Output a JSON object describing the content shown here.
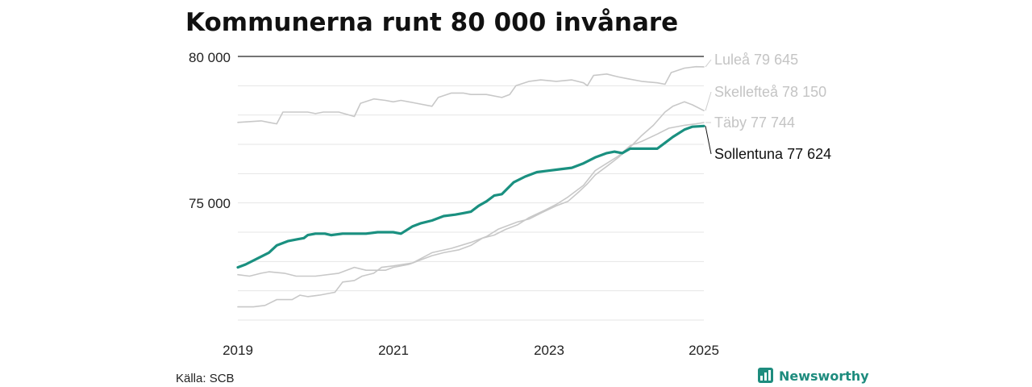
{
  "chart_data": {
    "type": "line",
    "title": "Kommunerna runt 80 000 invånare",
    "source": "Källa: SCB",
    "brand": "Newsworthy",
    "ylim": [
      71000,
      80000
    ],
    "xlim": [
      2019.0,
      2025.0
    ],
    "yticks": [
      {
        "value": 80000,
        "label": "80 000"
      },
      {
        "value": 75000,
        "label": "75 000"
      }
    ],
    "gridlines": [
      79000,
      78000,
      77000,
      76000,
      74000,
      73000,
      72000,
      71000
    ],
    "xticks": [
      {
        "value": 2019,
        "label": "2019"
      },
      {
        "value": 2021,
        "label": "2021"
      },
      {
        "value": 2023,
        "label": "2023"
      },
      {
        "value": 2025,
        "label": "2025"
      }
    ],
    "grid": true,
    "legend": "direct labels at line ends",
    "colors": {
      "highlight": "#1a9080",
      "context": "#c8c8c8",
      "context_label": "#c4c4c4",
      "highlight_label": "#111111"
    },
    "series": [
      {
        "name": "Luleå",
        "label": "Luleå 79 645",
        "highlight": false,
        "points": [
          [
            2019.0,
            77750
          ],
          [
            2019.3,
            77800
          ],
          [
            2019.4,
            77750
          ],
          [
            2019.5,
            77700
          ],
          [
            2019.58,
            78100
          ],
          [
            2019.75,
            78100
          ],
          [
            2019.9,
            78100
          ],
          [
            2020.0,
            78050
          ],
          [
            2020.1,
            78100
          ],
          [
            2020.3,
            78100
          ],
          [
            2020.5,
            77950
          ],
          [
            2020.58,
            78400
          ],
          [
            2020.75,
            78550
          ],
          [
            2020.9,
            78500
          ],
          [
            2021.0,
            78450
          ],
          [
            2021.1,
            78500
          ],
          [
            2021.3,
            78400
          ],
          [
            2021.5,
            78300
          ],
          [
            2021.58,
            78600
          ],
          [
            2021.75,
            78750
          ],
          [
            2021.9,
            78750
          ],
          [
            2022.0,
            78700
          ],
          [
            2022.2,
            78700
          ],
          [
            2022.4,
            78600
          ],
          [
            2022.5,
            78700
          ],
          [
            2022.58,
            79000
          ],
          [
            2022.75,
            79150
          ],
          [
            2022.9,
            79200
          ],
          [
            2023.1,
            79150
          ],
          [
            2023.3,
            79200
          ],
          [
            2023.45,
            79100
          ],
          [
            2023.5,
            79000
          ],
          [
            2023.58,
            79350
          ],
          [
            2023.75,
            79400
          ],
          [
            2023.9,
            79300
          ],
          [
            2024.0,
            79250
          ],
          [
            2024.2,
            79150
          ],
          [
            2024.4,
            79100
          ],
          [
            2024.5,
            79050
          ],
          [
            2024.58,
            79450
          ],
          [
            2024.75,
            79600
          ],
          [
            2024.9,
            79650
          ],
          [
            2025.0,
            79645
          ]
        ]
      },
      {
        "name": "Skellefteå",
        "label": "Skellefteå 78 150",
        "highlight": false,
        "points": [
          [
            2019.0,
            71450
          ],
          [
            2019.2,
            71450
          ],
          [
            2019.35,
            71500
          ],
          [
            2019.5,
            71700
          ],
          [
            2019.7,
            71700
          ],
          [
            2019.8,
            71850
          ],
          [
            2019.9,
            71800
          ],
          [
            2020.05,
            71850
          ],
          [
            2020.25,
            71950
          ],
          [
            2020.35,
            72300
          ],
          [
            2020.5,
            72350
          ],
          [
            2020.6,
            72500
          ],
          [
            2020.75,
            72600
          ],
          [
            2020.85,
            72800
          ],
          [
            2021.0,
            72850
          ],
          [
            2021.25,
            72950
          ],
          [
            2021.5,
            73300
          ],
          [
            2021.75,
            73450
          ],
          [
            2022.0,
            73650
          ],
          [
            2022.2,
            73850
          ],
          [
            2022.35,
            74100
          ],
          [
            2022.5,
            74250
          ],
          [
            2022.6,
            74350
          ],
          [
            2022.75,
            74450
          ],
          [
            2022.9,
            74650
          ],
          [
            2023.1,
            74900
          ],
          [
            2023.25,
            75050
          ],
          [
            2023.4,
            75400
          ],
          [
            2023.5,
            75650
          ],
          [
            2023.6,
            75950
          ],
          [
            2023.75,
            76250
          ],
          [
            2023.9,
            76550
          ],
          [
            2024.05,
            76900
          ],
          [
            2024.2,
            77300
          ],
          [
            2024.35,
            77650
          ],
          [
            2024.5,
            78100
          ],
          [
            2024.6,
            78300
          ],
          [
            2024.75,
            78450
          ],
          [
            2024.85,
            78350
          ],
          [
            2025.0,
            78150
          ]
        ]
      },
      {
        "name": "Täby",
        "label": "Täby 77 744",
        "highlight": false,
        "points": [
          [
            2019.0,
            72550
          ],
          [
            2019.15,
            72500
          ],
          [
            2019.3,
            72600
          ],
          [
            2019.4,
            72650
          ],
          [
            2019.6,
            72600
          ],
          [
            2019.75,
            72500
          ],
          [
            2020.0,
            72500
          ],
          [
            2020.3,
            72600
          ],
          [
            2020.5,
            72800
          ],
          [
            2020.65,
            72700
          ],
          [
            2020.9,
            72700
          ],
          [
            2021.0,
            72800
          ],
          [
            2021.2,
            72900
          ],
          [
            2021.35,
            73050
          ],
          [
            2021.5,
            73200
          ],
          [
            2021.65,
            73300
          ],
          [
            2021.85,
            73400
          ],
          [
            2022.0,
            73550
          ],
          [
            2022.15,
            73800
          ],
          [
            2022.3,
            73900
          ],
          [
            2022.45,
            74100
          ],
          [
            2022.6,
            74250
          ],
          [
            2022.75,
            74500
          ],
          [
            2022.95,
            74750
          ],
          [
            2023.1,
            74950
          ],
          [
            2023.25,
            75200
          ],
          [
            2023.45,
            75600
          ],
          [
            2023.6,
            76100
          ],
          [
            2023.75,
            76350
          ],
          [
            2023.9,
            76600
          ],
          [
            2024.05,
            76950
          ],
          [
            2024.2,
            77100
          ],
          [
            2024.4,
            77350
          ],
          [
            2024.55,
            77550
          ],
          [
            2024.75,
            77650
          ],
          [
            2024.9,
            77700
          ],
          [
            2025.0,
            77744
          ]
        ]
      },
      {
        "name": "Sollentuna",
        "label": "Sollentuna 77 624",
        "highlight": true,
        "points": [
          [
            2019.0,
            72800
          ],
          [
            2019.1,
            72900
          ],
          [
            2019.25,
            73100
          ],
          [
            2019.4,
            73300
          ],
          [
            2019.5,
            73550
          ],
          [
            2019.65,
            73700
          ],
          [
            2019.75,
            73750
          ],
          [
            2019.85,
            73800
          ],
          [
            2019.9,
            73900
          ],
          [
            2020.0,
            73950
          ],
          [
            2020.12,
            73950
          ],
          [
            2020.2,
            73900
          ],
          [
            2020.35,
            73950
          ],
          [
            2020.5,
            73950
          ],
          [
            2020.65,
            73950
          ],
          [
            2020.8,
            74000
          ],
          [
            2021.0,
            74000
          ],
          [
            2021.1,
            73950
          ],
          [
            2021.25,
            74200
          ],
          [
            2021.35,
            74300
          ],
          [
            2021.5,
            74400
          ],
          [
            2021.65,
            74550
          ],
          [
            2021.8,
            74600
          ],
          [
            2021.9,
            74650
          ],
          [
            2022.0,
            74700
          ],
          [
            2022.1,
            74900
          ],
          [
            2022.2,
            75050
          ],
          [
            2022.3,
            75250
          ],
          [
            2022.4,
            75300
          ],
          [
            2022.55,
            75700
          ],
          [
            2022.7,
            75900
          ],
          [
            2022.85,
            76050
          ],
          [
            2023.0,
            76100
          ],
          [
            2023.15,
            76150
          ],
          [
            2023.3,
            76200
          ],
          [
            2023.45,
            76350
          ],
          [
            2023.6,
            76550
          ],
          [
            2023.75,
            76700
          ],
          [
            2023.85,
            76750
          ],
          [
            2023.95,
            76700
          ],
          [
            2024.05,
            76850
          ],
          [
            2024.2,
            76850
          ],
          [
            2024.4,
            76850
          ],
          [
            2024.5,
            77050
          ],
          [
            2024.6,
            77250
          ],
          [
            2024.75,
            77500
          ],
          [
            2024.85,
            77600
          ],
          [
            2025.0,
            77624
          ]
        ]
      }
    ]
  }
}
